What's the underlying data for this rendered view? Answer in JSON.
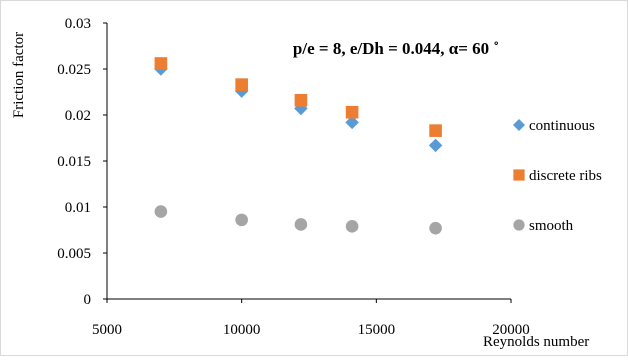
{
  "chart_data": {
    "type": "scatter",
    "title": "p/e = 8, e/Dh = 0.044, α= 60 ˚",
    "xlabel": "Reynolds number",
    "ylabel": "Friction factor",
    "xlim": [
      5000,
      20000
    ],
    "ylim": [
      0,
      0.03
    ],
    "x_ticks": [
      5000,
      10000,
      15000,
      20000
    ],
    "x_tick_labels": [
      "5000",
      "10000",
      "15000",
      "20000"
    ],
    "y_ticks": [
      0,
      0.005,
      0.01,
      0.015,
      0.02,
      0.025,
      0.03
    ],
    "y_tick_labels": [
      "0",
      "0.005",
      "0.01",
      "0.015",
      "0.02",
      "0.025",
      "0.03"
    ],
    "grid": false,
    "legend_position": "right",
    "series": [
      {
        "name": "continuous",
        "marker": "diamond",
        "color": "#5B9BD5",
        "x": [
          7000,
          10000,
          12200,
          14100,
          17200
        ],
        "y": [
          0.025,
          0.0226,
          0.0207,
          0.0192,
          0.0167
        ]
      },
      {
        "name": "discrete ribs",
        "marker": "square",
        "color": "#ED7D31",
        "x": [
          7000,
          10000,
          12200,
          14100,
          17200
        ],
        "y": [
          0.0256,
          0.0233,
          0.0216,
          0.0203,
          0.0183
        ]
      },
      {
        "name": "smooth",
        "marker": "circle",
        "color": "#A5A5A5",
        "x": [
          7000,
          10000,
          12200,
          14100,
          17200
        ],
        "y": [
          0.0095,
          0.0086,
          0.0081,
          0.0079,
          0.0077
        ]
      }
    ]
  }
}
